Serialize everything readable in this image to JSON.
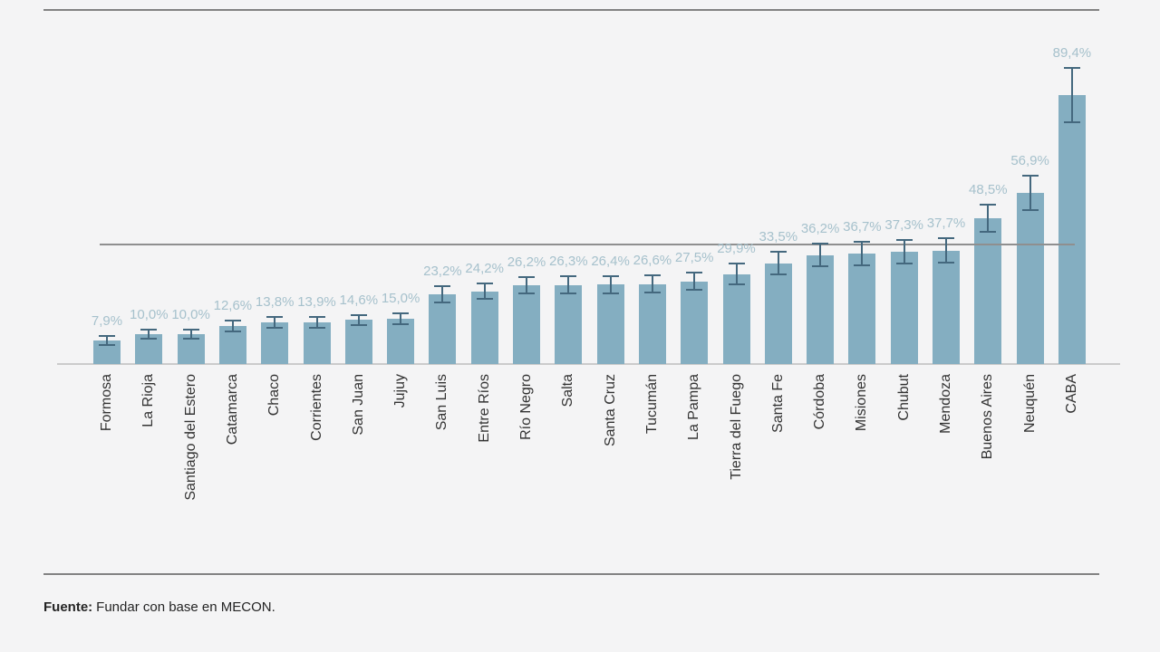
{
  "chart_data": {
    "type": "bar",
    "title": "",
    "xlabel": "",
    "ylabel": "",
    "ylim": [
      0,
      100
    ],
    "grid": false,
    "legend": null,
    "orientation": "vertical",
    "value_format": "percent-comma-decimal",
    "categories": [
      "Formosa",
      "La Rioja",
      "Santiago del Estero",
      "Catamarca",
      "Chaco",
      "Corrientes",
      "San Juan",
      "Jujuy",
      "San Luis",
      "Entre Ríos",
      "Río Negro",
      "Salta",
      "Santa Cruz",
      "Tucumán",
      "La Pampa",
      "Tierra del Fuego",
      "Santa Fe",
      "Córdoba",
      "Misiones",
      "Chubut",
      "Mendoza",
      "Buenos Aires",
      "Neuquén",
      "CABA"
    ],
    "values": [
      7.9,
      10.0,
      10.0,
      12.6,
      13.8,
      13.9,
      14.6,
      15.0,
      23.2,
      24.2,
      26.2,
      26.3,
      26.4,
      26.6,
      27.5,
      29.9,
      33.5,
      36.2,
      36.7,
      37.3,
      37.7,
      48.5,
      56.9,
      89.4
    ],
    "value_labels": [
      "7,9%",
      "10,0%",
      "10,0%",
      "12,6%",
      "13,8%",
      "13,9%",
      "14,6%",
      "15,0%",
      "23,2%",
      "24,2%",
      "26,2%",
      "26,3%",
      "26,4%",
      "26,6%",
      "27,5%",
      "29,9%",
      "33,5%",
      "36,2%",
      "36,7%",
      "37,3%",
      "37,7%",
      "48,5%",
      "56,9%",
      "89,4%"
    ],
    "error_bars": [
      1.5,
      1.5,
      1.5,
      1.8,
      1.8,
      1.8,
      1.8,
      1.8,
      2.8,
      2.5,
      2.8,
      2.8,
      2.8,
      2.8,
      2.8,
      3.5,
      3.8,
      3.8,
      3.8,
      4.0,
      4.0,
      4.6,
      5.6,
      9.0
    ],
    "reference_line_value": 39.7,
    "colors": {
      "bar": "#84aec1",
      "error_bar": "#44687e",
      "value_label": "#a6c1cc",
      "reference_line": "#8f8f8f",
      "axis_line": "#cbcbcb",
      "axis_text": "#333333"
    }
  },
  "footer": {
    "source_label": "Fuente:",
    "source_text": "Fundar con base en MECON."
  }
}
